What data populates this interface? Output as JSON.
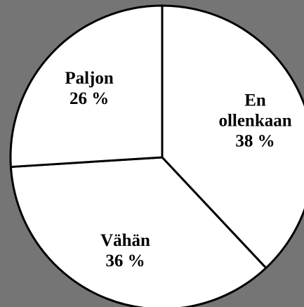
{
  "chart_data": {
    "type": "pie",
    "categories": [
      "En ollenkaan",
      "Vähän",
      "Paljon"
    ],
    "values": [
      38,
      36,
      26
    ],
    "value_labels": [
      "38 %",
      "36 %",
      "26 %"
    ],
    "color": "#ffffff",
    "edge_color": "#000000",
    "background": "#757575"
  }
}
